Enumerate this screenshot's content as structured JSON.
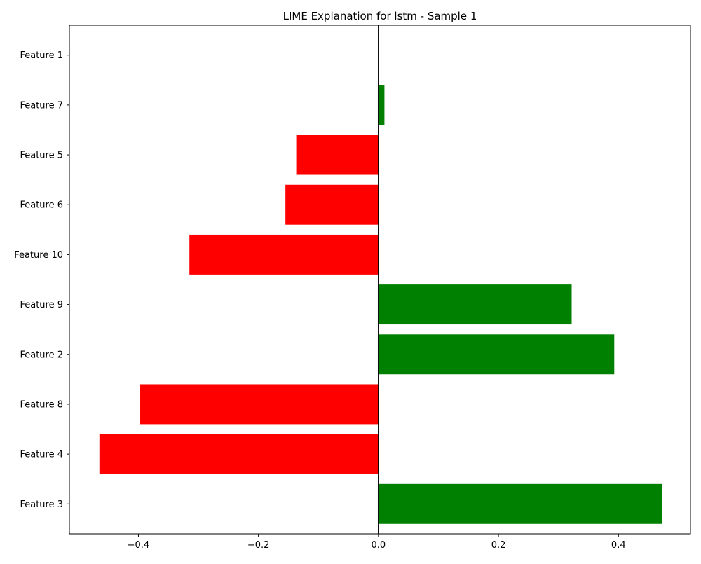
{
  "chart_data": {
    "type": "bar",
    "orientation": "horizontal",
    "title": "LIME Explanation for lstm - Sample 1",
    "xlabel": "",
    "ylabel": "",
    "xlim": [
      -0.515,
      0.52
    ],
    "x_ticks": [
      -0.4,
      -0.2,
      0.0,
      0.2,
      0.4
    ],
    "x_tick_labels": [
      "−0.4",
      "−0.2",
      "0.0",
      "0.2",
      "0.4"
    ],
    "categories": [
      "Feature 3",
      "Feature 4",
      "Feature 8",
      "Feature 2",
      "Feature 9",
      "Feature 10",
      "Feature 6",
      "Feature 5",
      "Feature 7",
      "Feature 1"
    ],
    "values": [
      0.473,
      -0.465,
      -0.397,
      0.393,
      0.322,
      -0.315,
      -0.155,
      -0.137,
      0.01,
      0.0
    ],
    "positive_color": "#008000",
    "negative_color": "#ff0000",
    "zero_line": true,
    "grid": false
  }
}
